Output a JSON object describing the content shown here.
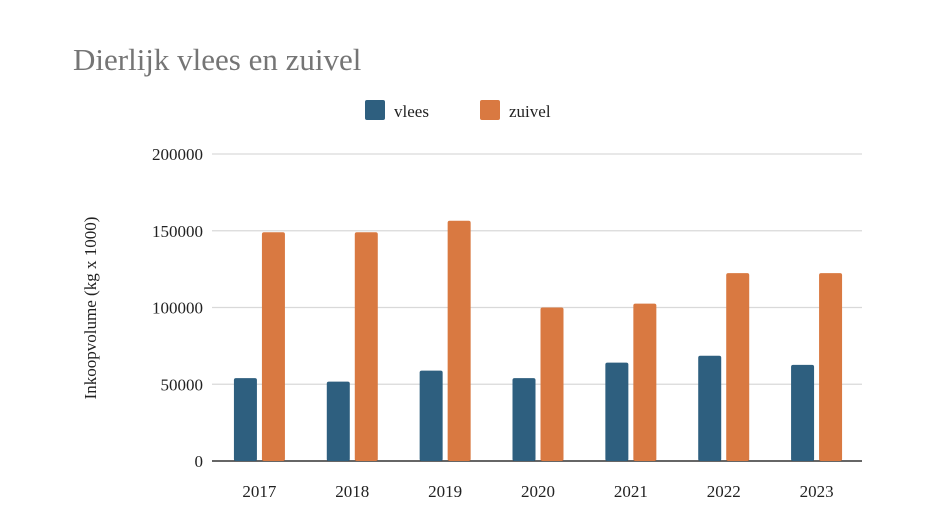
{
  "chart_data": {
    "type": "bar",
    "title": "Dierlijk vlees en zuivel",
    "xlabel": "",
    "ylabel": "Inkoopvolume (kg x 1000)",
    "categories": [
      "2017",
      "2018",
      "2019",
      "2020",
      "2021",
      "2022",
      "2023"
    ],
    "series": [
      {
        "name": "vlees",
        "color": "#2e5f7f",
        "values": [
          54000,
          51700,
          58900,
          54000,
          64100,
          68600,
          62600
        ]
      },
      {
        "name": "zuivel",
        "color": "#d97941",
        "values": [
          149000,
          149000,
          156500,
          100000,
          102500,
          122400,
          122400
        ]
      }
    ],
    "ylim": [
      0,
      200000
    ],
    "yticks": [
      "0",
      "50000",
      "100000",
      "150000",
      "200000"
    ],
    "grid": true,
    "legend": "top"
  }
}
